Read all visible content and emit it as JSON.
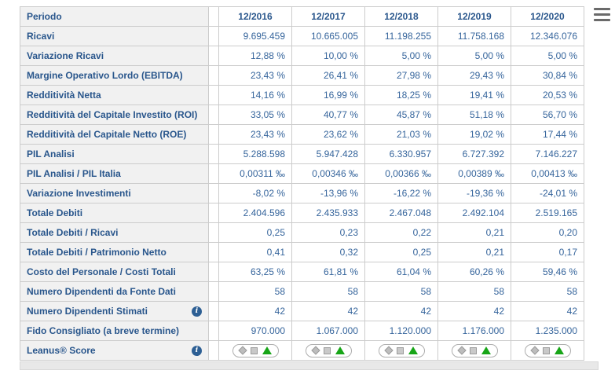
{
  "table": {
    "header": {
      "label": "Periodo",
      "columns": [
        "12/2016",
        "12/2017",
        "12/2018",
        "12/2019",
        "12/2020"
      ]
    },
    "rows": [
      {
        "label": "Ricavi",
        "values": [
          "9.695.459",
          "10.665.005",
          "11.198.255",
          "11.758.168",
          "12.346.076"
        ]
      },
      {
        "label": "Variazione Ricavi",
        "values": [
          "12,88 %",
          "10,00 %",
          "5,00 %",
          "5,00 %",
          "5,00 %"
        ]
      },
      {
        "label": "Margine Operativo Lordo (EBITDA)",
        "values": [
          "23,43 %",
          "26,41 %",
          "27,98 %",
          "29,43 %",
          "30,84 %"
        ]
      },
      {
        "label": "Redditività Netta",
        "values": [
          "14,16 %",
          "16,99 %",
          "18,25 %",
          "19,41 %",
          "20,53 %"
        ]
      },
      {
        "label": "Redditività del Capitale Investito (ROI)",
        "values": [
          "33,05 %",
          "40,77 %",
          "45,87 %",
          "51,18 %",
          "56,70 %"
        ]
      },
      {
        "label": "Redditività del Capitale Netto (ROE)",
        "values": [
          "23,43 %",
          "23,62 %",
          "21,03 %",
          "19,02 %",
          "17,44 %"
        ]
      },
      {
        "label": "PIL Analisi",
        "values": [
          "5.288.598",
          "5.947.428",
          "6.330.957",
          "6.727.392",
          "7.146.227"
        ]
      },
      {
        "label": "PIL Analisi / PIL Italia",
        "values": [
          "0,00311 ‰",
          "0,00346 ‰",
          "0,00366 ‰",
          "0,00389 ‰",
          "0,00413 ‰"
        ]
      },
      {
        "label": "Variazione Investimenti",
        "values": [
          "-8,02 %",
          "-13,96 %",
          "-16,22 %",
          "-19,36 %",
          "-24,01 %"
        ]
      },
      {
        "label": "Totale Debiti",
        "values": [
          "2.404.596",
          "2.435.933",
          "2.467.048",
          "2.492.104",
          "2.519.165"
        ]
      },
      {
        "label": "Totale Debiti / Ricavi",
        "values": [
          "0,25",
          "0,23",
          "0,22",
          "0,21",
          "0,20"
        ]
      },
      {
        "label": "Totale Debiti / Patrimonio Netto",
        "values": [
          "0,41",
          "0,32",
          "0,25",
          "0,21",
          "0,17"
        ]
      },
      {
        "label": "Costo del Personale / Costi Totali",
        "values": [
          "63,25 %",
          "61,81 %",
          "61,04 %",
          "60,26 %",
          "59,46 %"
        ]
      },
      {
        "label": "Numero Dipendenti da Fonte Dati",
        "values": [
          "58",
          "58",
          "58",
          "58",
          "58"
        ]
      },
      {
        "label": "Numero Dipendenti Stimati",
        "info": true,
        "values": [
          "42",
          "42",
          "42",
          "42",
          "42"
        ]
      },
      {
        "label": "Fido Consigliato (a breve termine)",
        "values": [
          "970.000",
          "1.067.000",
          "1.120.000",
          "1.176.000",
          "1.235.000"
        ]
      },
      {
        "label": "Leanus® Score",
        "info": true,
        "type": "score"
      }
    ],
    "score_shapes": [
      "diamond",
      "square",
      "triangle"
    ]
  },
  "icons": {
    "menu": "hamburger-menu-icon",
    "info": "info-icon",
    "info_glyph": "i"
  },
  "colors": {
    "label_text": "#29568C",
    "value_text": "#36659C",
    "border": "#CCCCCC",
    "label_bg": "#F1F1F1",
    "footer_bg": "#E8E8E8",
    "score_green": "#17A517",
    "score_gray": "#BDBDBD",
    "info_icon_bg": "#2D5F94"
  }
}
